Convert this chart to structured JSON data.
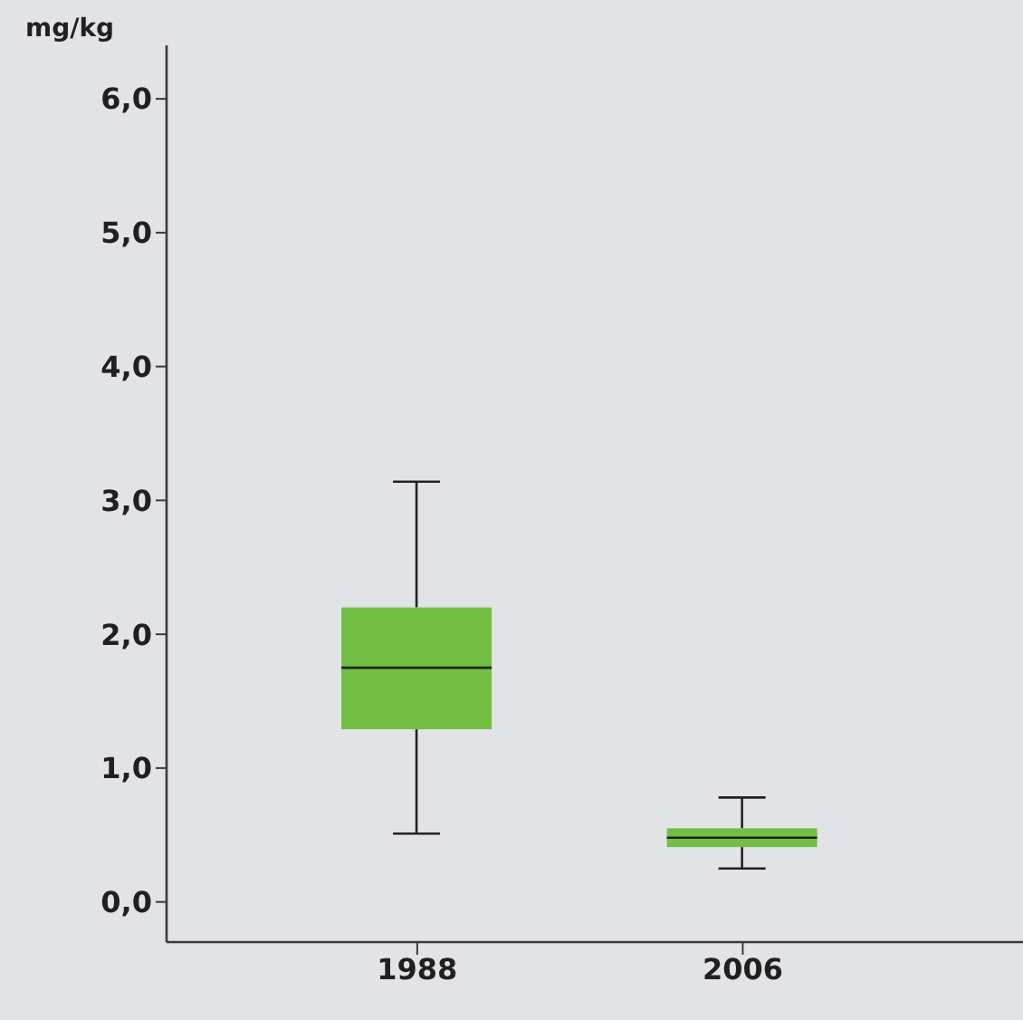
{
  "chart_data": {
    "type": "box",
    "ylabel": "mg/kg",
    "categories": [
      "1988",
      "2006"
    ],
    "color": "#72bf44",
    "boxes": [
      {
        "low": 0.51,
        "q1": 1.29,
        "median": 1.75,
        "q3": 2.2,
        "high": 3.14
      },
      {
        "low": 0.25,
        "q1": 0.41,
        "median": 0.48,
        "q3": 0.55,
        "high": 0.78
      }
    ],
    "ylim": [
      -0.3,
      6.4
    ],
    "yticks": [
      {
        "value": 0,
        "label": "0,0"
      },
      {
        "value": 1,
        "label": "1,0"
      },
      {
        "value": 2,
        "label": "2,0"
      },
      {
        "value": 3,
        "label": "3,0"
      },
      {
        "value": 4,
        "label": "4,0"
      },
      {
        "value": 5,
        "label": "5,0"
      },
      {
        "value": 6,
        "label": "6,0"
      }
    ],
    "grid": false
  }
}
